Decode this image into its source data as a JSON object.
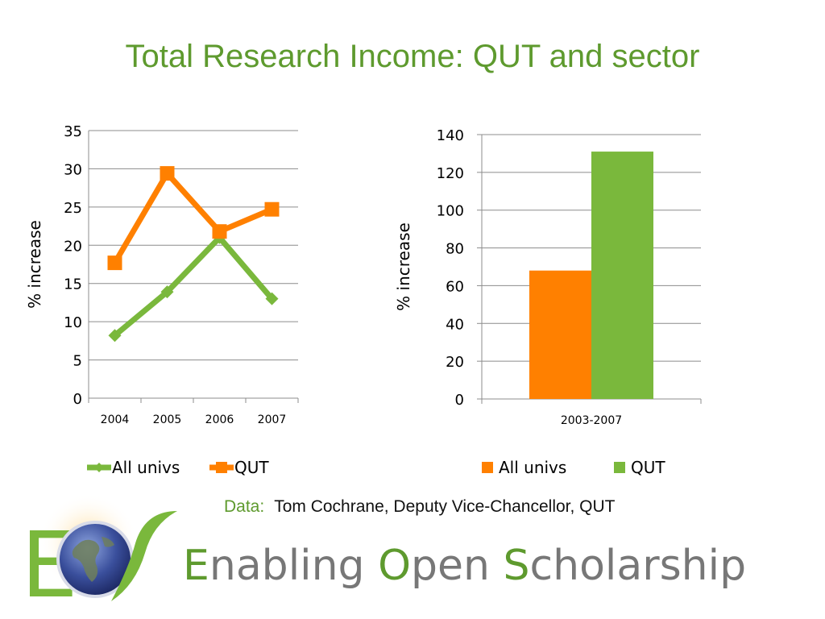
{
  "page_title": "Total Research Income: QUT and sector",
  "colors": {
    "green": "#7ab83c",
    "orange": "#ff8000",
    "title_green": "#5e9a2e",
    "gray": "#777777"
  },
  "chart_data": [
    {
      "type": "line",
      "x": [
        "2004",
        "2005",
        "2006",
        "2007"
      ],
      "series": [
        {
          "name": "All univs",
          "values": [
            8.2,
            13.9,
            21.0,
            13.0
          ],
          "color": "#7ab83c",
          "marker": "diamond"
        },
        {
          "name": "QUT",
          "values": [
            17.7,
            29.4,
            21.8,
            24.7
          ],
          "color": "#ff8000",
          "marker": "square"
        }
      ],
      "ylabel": "% increase",
      "ylim": [
        0,
        35
      ],
      "yticks": [
        "0",
        "5",
        "10",
        "15",
        "20",
        "25",
        "30",
        "35"
      ],
      "grid": true,
      "legend": "bottom"
    },
    {
      "type": "bar",
      "categories": [
        "2003-2007"
      ],
      "series": [
        {
          "name": "All univs",
          "values": [
            68
          ],
          "color": "#ff8000"
        },
        {
          "name": "QUT",
          "values": [
            131
          ],
          "color": "#7ab83c"
        }
      ],
      "ylabel": "% increase",
      "ylim": [
        0,
        140
      ],
      "yticks": [
        "0",
        "20",
        "40",
        "60",
        "80",
        "100",
        "120",
        "140"
      ],
      "grid": true,
      "legend": "bottom"
    }
  ],
  "credit": {
    "label": "Data:",
    "text": "Tom Cochrane, Deputy Vice-Chancellor, QUT"
  },
  "logo": {
    "letter_e": "E",
    "icon": "globe-icon"
  },
  "brand": {
    "e": "E",
    "e_rest": "nabling ",
    "o": "O",
    "o_rest": "pen ",
    "s": "S",
    "s_rest": "cholarship"
  }
}
